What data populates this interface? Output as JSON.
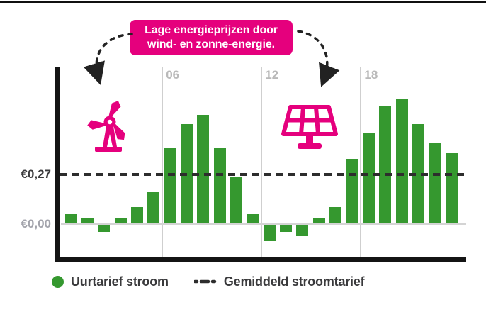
{
  "callout": {
    "line1": "Lage energieprijzen door",
    "line2": "wind- en zonne-energie."
  },
  "y_axis": {
    "average_label": "€0,27",
    "zero_label": "€0,00"
  },
  "legend": {
    "bars_label": "Uurtarief stroom",
    "avg_label": "Gemiddeld stroomtarief"
  },
  "icons": [
    "wind-turbine-icon",
    "solar-panel-icon",
    "arrow-to-wind-icon",
    "arrow-to-solar-icon"
  ],
  "colors": {
    "accent_pink": "#E5007D",
    "bar_green": "#35982F",
    "avg_line": "#2D2D2D",
    "dark_text": "#3A3A3C",
    "gray_label": "#A3A4AC",
    "tick_label": "#B9B9B9"
  },
  "chart_data": {
    "type": "bar",
    "title": "",
    "xlabel": "",
    "ylabel": "",
    "x": [
      0,
      1,
      2,
      3,
      4,
      5,
      6,
      7,
      8,
      9,
      10,
      11,
      12,
      13,
      14,
      15,
      16,
      17,
      18,
      19,
      20,
      21,
      22,
      23
    ],
    "values": [
      0.05,
      0.03,
      -0.04,
      0.03,
      0.09,
      0.17,
      0.41,
      0.54,
      0.59,
      0.41,
      0.25,
      0.05,
      -0.09,
      -0.04,
      -0.06,
      0.03,
      0.09,
      0.35,
      0.49,
      0.64,
      0.68,
      0.54,
      0.44,
      0.38
    ],
    "series_name": "Uurtarief stroom",
    "average_line": {
      "value": 0.27,
      "label": "€0,27",
      "legend": "Gemiddeld stroomtarief",
      "style": "dashed"
    },
    "baseline": {
      "value": 0,
      "label": "€0,00"
    },
    "x_ticks": [
      {
        "hour": 6,
        "label": "06"
      },
      {
        "hour": 12,
        "label": "12"
      },
      {
        "hour": 18,
        "label": "18"
      }
    ],
    "ylim": [
      -0.12,
      0.75
    ],
    "grid": "vertical-only",
    "legend_position": "bottom-left",
    "annotation": "Lage energieprijzen door wind- en zonne-energie."
  }
}
